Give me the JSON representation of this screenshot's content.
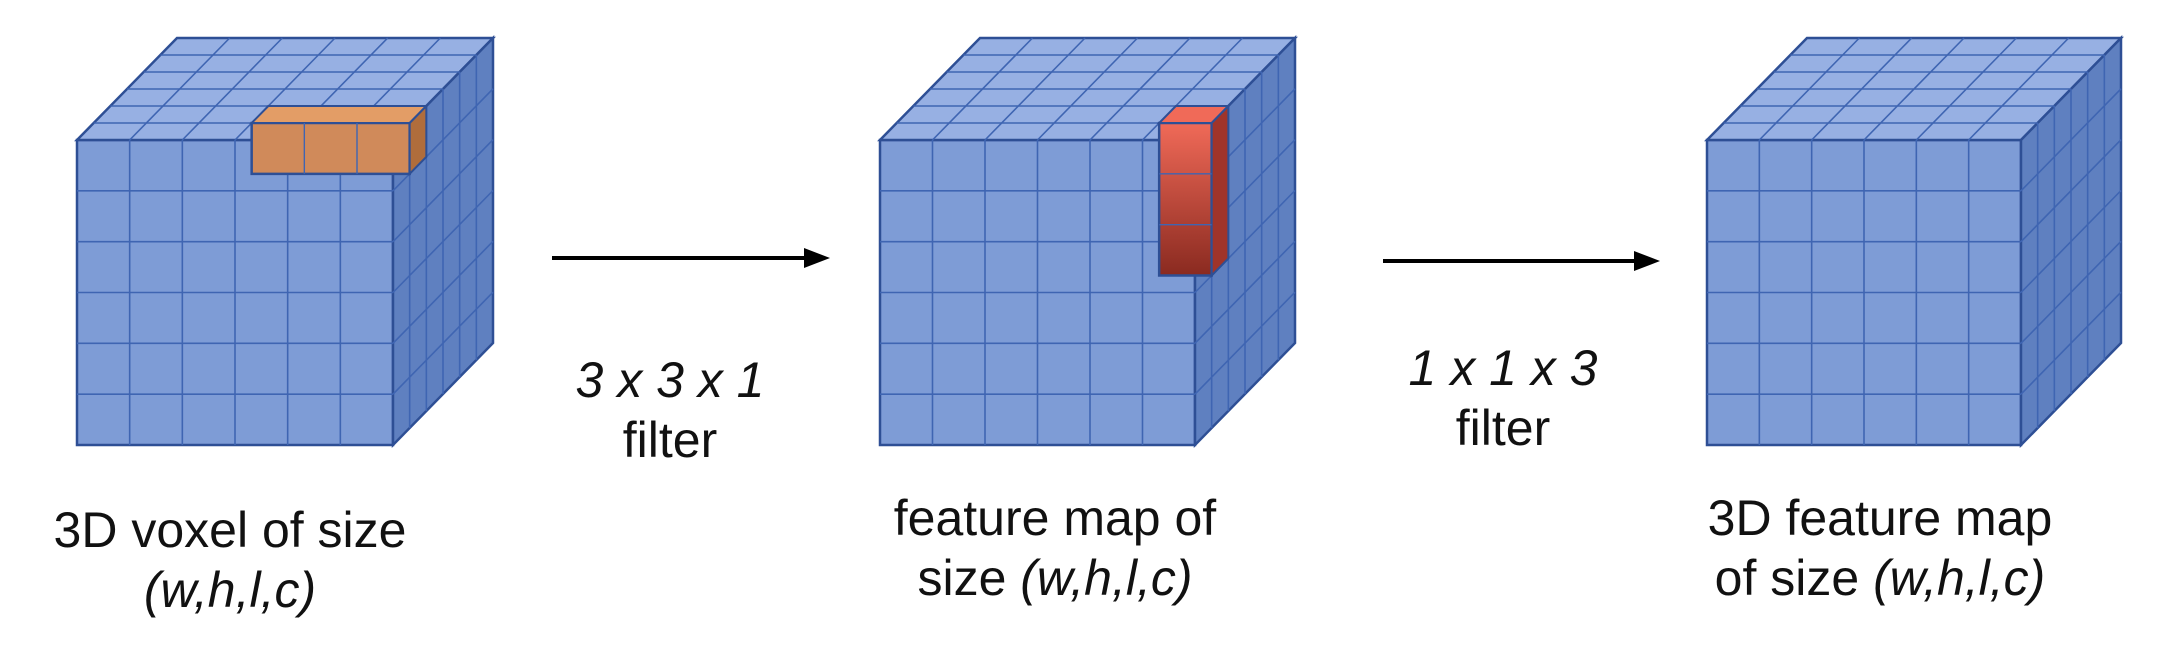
{
  "diagram": {
    "colors": {
      "cube_front": "#7e9cd6",
      "cube_top": "#97b0e3",
      "cube_side": "#5f80c0",
      "grid_line": "#3f65b2",
      "edge": "#2e4f95",
      "highlight_orange_front": "#d08a5a",
      "highlight_orange_top": "#e39d66",
      "highlight_orange_side": "#b06d3c",
      "highlight_red_top": "#f06a58",
      "highlight_red_bottom": "#8a2a20",
      "highlight_red_side": "#a0342a",
      "arrow": "#000000",
      "text": "#111111"
    },
    "cubes": [
      {
        "id": "input-voxel",
        "icon": "voxel-cube-icon",
        "caption_line1": "3D voxel of size",
        "caption_line2_italic": "(w,h,l,c)",
        "highlight": "orange-3x3x1-block"
      },
      {
        "id": "intermediate-feature-map",
        "icon": "feature-map-cube-icon",
        "caption_line1": "feature map of",
        "caption_line2_prefix": "size ",
        "caption_line2_italic": "(w,h,l,c)",
        "highlight": "red-1x1x3-column"
      },
      {
        "id": "output-feature-map",
        "icon": "output-cube-icon",
        "caption_line1": "3D feature map",
        "caption_line2_prefix": "of size ",
        "caption_line2_italic": "(w,h,l,c)",
        "highlight": "none"
      }
    ],
    "arrows": [
      {
        "id": "arrow-1",
        "icon": "right-arrow-icon",
        "label_italic": "3 x 3 x 1",
        "label": "filter"
      },
      {
        "id": "arrow-2",
        "icon": "right-arrow-icon",
        "label_italic": "1 x 1 x 3",
        "label": "filter"
      }
    ]
  }
}
